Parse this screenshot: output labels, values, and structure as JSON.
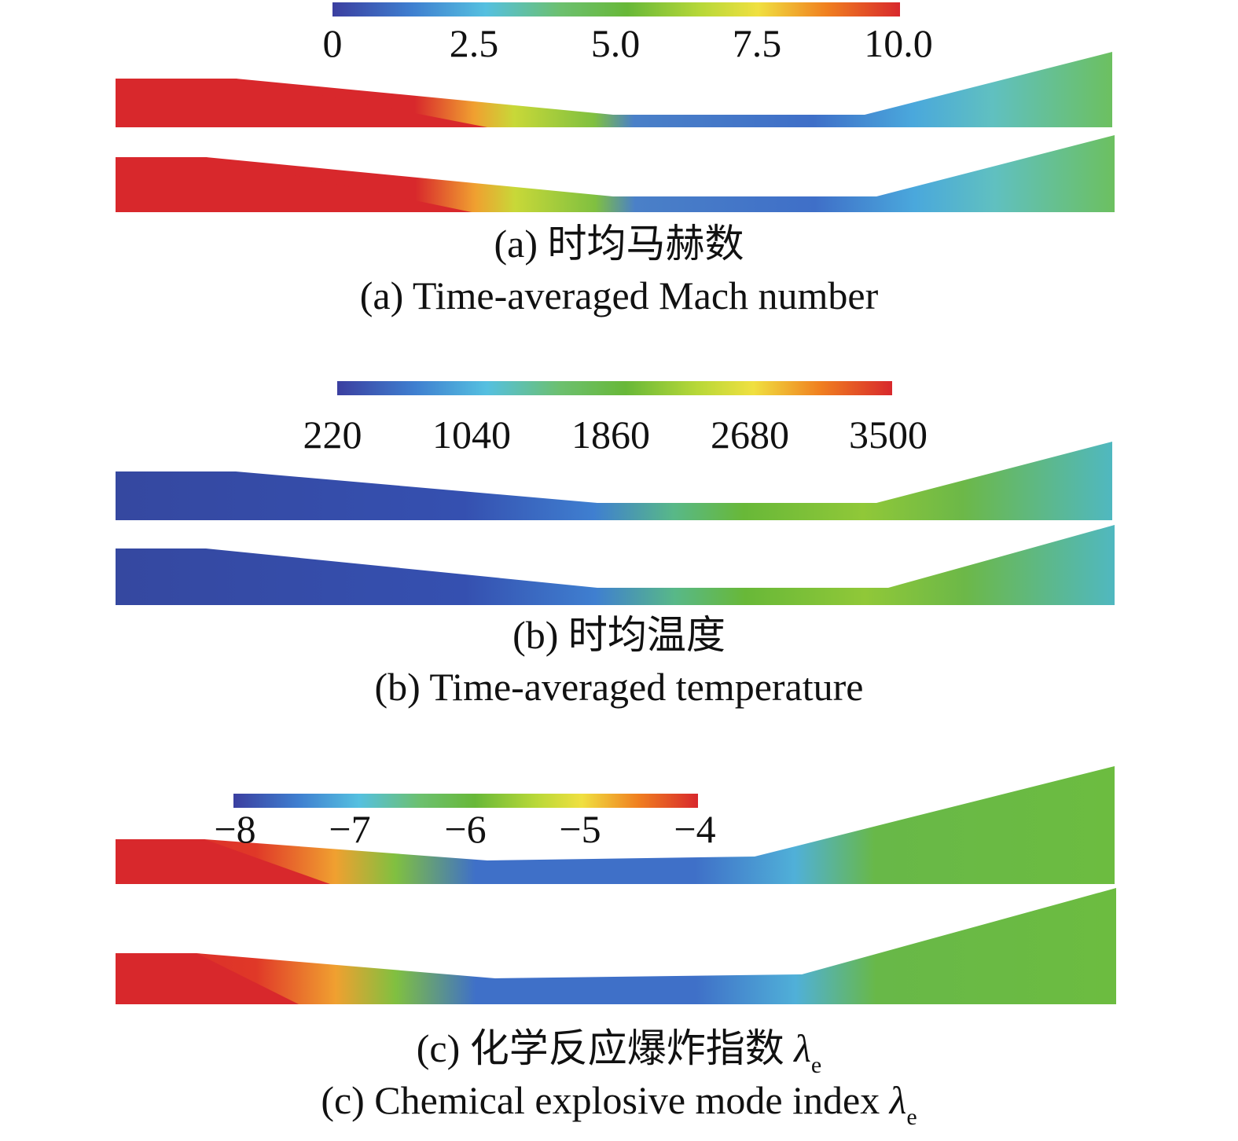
{
  "panels": [
    {
      "id": "a",
      "colorbar": {
        "ticks": [
          "0",
          "2.5",
          "5.0",
          "7.5",
          "10.0"
        ],
        "min": 0,
        "max": 10.0
      },
      "caption_zh": "(a) 时均马赫数",
      "caption_en": "(a) Time-averaged Mach number"
    },
    {
      "id": "b",
      "colorbar": {
        "ticks": [
          "220",
          "1040",
          "1860",
          "2680",
          "3500"
        ],
        "min": 220,
        "max": 3500
      },
      "caption_zh": "(b) 时均温度",
      "caption_en": "(b) Time-averaged temperature"
    },
    {
      "id": "c",
      "colorbar": {
        "ticks": [
          "−8",
          "−7",
          "−6",
          "−5",
          "−4"
        ],
        "min": -8,
        "max": -4
      },
      "caption_zh": "(c) 化学反应爆炸指数",
      "caption_en": "(c) Chemical explosive mode index",
      "symbol": "λ",
      "symbol_sub": "e"
    }
  ],
  "colormap": [
    "#3b3fa0",
    "#3f7fd0",
    "#55c0e0",
    "#6cc070",
    "#68b838",
    "#b8d838",
    "#f0e040",
    "#f08020",
    "#d8282c"
  ]
}
